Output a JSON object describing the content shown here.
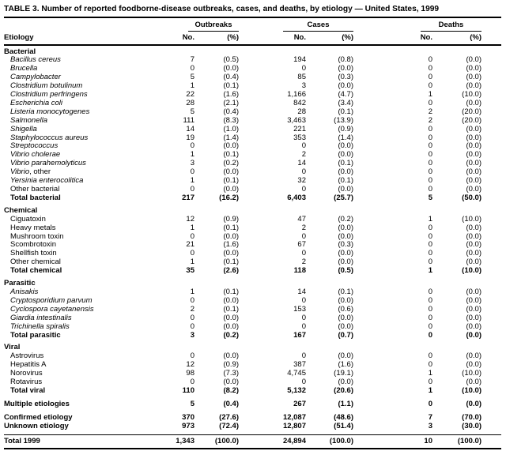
{
  "chart_data": {
    "type": "table",
    "title": "TABLE 3. Number of reported foodborne-disease outbreaks, cases, and deaths, by etiology — United States, 1999",
    "row_header": "Etiology",
    "column_groups": [
      {
        "label": "Outbreaks",
        "columns": [
          "No.",
          "(%)"
        ]
      },
      {
        "label": "Cases",
        "columns": [
          "No.",
          "(%)"
        ]
      },
      {
        "label": "Deaths",
        "columns": [
          "No.",
          "(%)"
        ]
      }
    ],
    "sections": [
      {
        "header": "Bacterial",
        "rows": [
          {
            "name": "Bacillus cereus",
            "style": "italic",
            "values": [
              "7",
              "(0.5)",
              "194",
              "(0.8)",
              "0",
              "(0.0)"
            ]
          },
          {
            "name": "Brucella",
            "style": "italic",
            "values": [
              "0",
              "(0.0)",
              "0",
              "(0.0)",
              "0",
              "(0.0)"
            ]
          },
          {
            "name": "Campylobacter",
            "style": "italic",
            "values": [
              "5",
              "(0.4)",
              "85",
              "(0.3)",
              "0",
              "(0.0)"
            ]
          },
          {
            "name": "Clostridium botulinum",
            "style": "italic",
            "values": [
              "1",
              "(0.1)",
              "3",
              "(0.0)",
              "0",
              "(0.0)"
            ]
          },
          {
            "name": "Clostridium perfringens",
            "style": "italic",
            "values": [
              "22",
              "(1.6)",
              "1,166",
              "(4.7)",
              "1",
              "(10.0)"
            ]
          },
          {
            "name": "Escherichia coli",
            "style": "italic",
            "values": [
              "28",
              "(2.1)",
              "842",
              "(3.4)",
              "0",
              "(0.0)"
            ]
          },
          {
            "name": "Listeria monocytogenes",
            "style": "italic",
            "values": [
              "5",
              "(0.4)",
              "28",
              "(0.1)",
              "2",
              "(20.0)"
            ]
          },
          {
            "name": "Salmonella",
            "style": "italic",
            "values": [
              "111",
              "(8.3)",
              "3,463",
              "(13.9)",
              "2",
              "(20.0)"
            ]
          },
          {
            "name": "Shigella",
            "style": "italic",
            "values": [
              "14",
              "(1.0)",
              "221",
              "(0.9)",
              "0",
              "(0.0)"
            ]
          },
          {
            "name": "Staphylococcus aureus",
            "style": "italic",
            "values": [
              "19",
              "(1.4)",
              "353",
              "(1.4)",
              "0",
              "(0.0)"
            ]
          },
          {
            "name": "Streptococcus",
            "style": "italic",
            "values": [
              "0",
              "(0.0)",
              "0",
              "(0.0)",
              "0",
              "(0.0)"
            ]
          },
          {
            "name": "Vibrio cholerae",
            "style": "italic",
            "values": [
              "1",
              "(0.1)",
              "2",
              "(0.0)",
              "0",
              "(0.0)"
            ]
          },
          {
            "name": "Vibrio parahemolyticus",
            "style": "italic",
            "values": [
              "3",
              "(0.2)",
              "14",
              "(0.1)",
              "0",
              "(0.0)"
            ]
          },
          {
            "name": "Vibrio, other",
            "style": "mixed",
            "italic_part": "Vibrio",
            "values": [
              "0",
              "(0.0)",
              "0",
              "(0.0)",
              "0",
              "(0.0)"
            ]
          },
          {
            "name": "Yersinia enterocolitica",
            "style": "italic",
            "values": [
              "1",
              "(0.1)",
              "32",
              "(0.1)",
              "0",
              "(0.0)"
            ]
          },
          {
            "name": "Other bacterial",
            "style": "roman",
            "values": [
              "0",
              "(0.0)",
              "0",
              "(0.0)",
              "0",
              "(0.0)"
            ]
          },
          {
            "name": "Total bacterial",
            "style": "roman",
            "total": true,
            "values": [
              "217",
              "(16.2)",
              "6,403",
              "(25.7)",
              "5",
              "(50.0)"
            ]
          }
        ]
      },
      {
        "header": "Chemical",
        "rows": [
          {
            "name": "Ciguatoxin",
            "style": "roman",
            "values": [
              "12",
              "(0.9)",
              "47",
              "(0.2)",
              "1",
              "(10.0)"
            ]
          },
          {
            "name": "Heavy metals",
            "style": "roman",
            "values": [
              "1",
              "(0.1)",
              "2",
              "(0.0)",
              "0",
              "(0.0)"
            ]
          },
          {
            "name": "Mushroom toxin",
            "style": "roman",
            "values": [
              "0",
              "(0.0)",
              "0",
              "(0.0)",
              "0",
              "(0.0)"
            ]
          },
          {
            "name": "Scombrotoxin",
            "style": "roman",
            "values": [
              "21",
              "(1.6)",
              "67",
              "(0.3)",
              "0",
              "(0.0)"
            ]
          },
          {
            "name": "Shellfish toxin",
            "style": "roman",
            "values": [
              "0",
              "(0.0)",
              "0",
              "(0.0)",
              "0",
              "(0.0)"
            ]
          },
          {
            "name": "Other chemical",
            "style": "roman",
            "values": [
              "1",
              "(0.1)",
              "2",
              "(0.0)",
              "0",
              "(0.0)"
            ]
          },
          {
            "name": "Total chemical",
            "style": "roman",
            "total": true,
            "values": [
              "35",
              "(2.6)",
              "118",
              "(0.5)",
              "1",
              "(10.0)"
            ]
          }
        ]
      },
      {
        "header": "Parasitic",
        "rows": [
          {
            "name": "Anisakis",
            "style": "italic",
            "values": [
              "1",
              "(0.1)",
              "14",
              "(0.1)",
              "0",
              "(0.0)"
            ]
          },
          {
            "name": "Cryptosporidium parvum",
            "style": "italic",
            "values": [
              "0",
              "(0.0)",
              "0",
              "(0.0)",
              "0",
              "(0.0)"
            ]
          },
          {
            "name": "Cyclospora cayetanensis",
            "style": "italic",
            "values": [
              "2",
              "(0.1)",
              "153",
              "(0.6)",
              "0",
              "(0.0)"
            ]
          },
          {
            "name": "Giardia intestinalis",
            "style": "italic",
            "values": [
              "0",
              "(0.0)",
              "0",
              "(0.0)",
              "0",
              "(0.0)"
            ]
          },
          {
            "name": "Trichinella spiralis",
            "style": "italic",
            "values": [
              "0",
              "(0.0)",
              "0",
              "(0.0)",
              "0",
              "(0.0)"
            ]
          },
          {
            "name": "Total parasitic",
            "style": "roman",
            "total": true,
            "values": [
              "3",
              "(0.2)",
              "167",
              "(0.7)",
              "0",
              "(0.0)"
            ]
          }
        ]
      },
      {
        "header": "Viral",
        "rows": [
          {
            "name": "Astrovirus",
            "style": "roman",
            "values": [
              "0",
              "(0.0)",
              "0",
              "(0.0)",
              "0",
              "(0.0)"
            ]
          },
          {
            "name": "Hepatitis A",
            "style": "roman",
            "values": [
              "12",
              "(0.9)",
              "387",
              "(1.6)",
              "0",
              "(0.0)"
            ]
          },
          {
            "name": "Norovirus",
            "style": "roman",
            "values": [
              "98",
              "(7.3)",
              "4,745",
              "(19.1)",
              "1",
              "(10.0)"
            ]
          },
          {
            "name": "Rotavirus",
            "style": "roman",
            "values": [
              "0",
              "(0.0)",
              "0",
              "(0.0)",
              "0",
              "(0.0)"
            ]
          },
          {
            "name": "Total viral",
            "style": "roman",
            "total": true,
            "values": [
              "110",
              "(8.2)",
              "5,132",
              "(20.6)",
              "1",
              "(10.0)"
            ]
          }
        ]
      }
    ],
    "summary_rows": [
      {
        "name": "Multiple etiologies",
        "gap_before": true,
        "values": [
          "5",
          "(0.4)",
          "267",
          "(1.1)",
          "0",
          "(0.0)"
        ]
      },
      {
        "name": "Confirmed etiology",
        "gap_before": true,
        "values": [
          "370",
          "(27.6)",
          "12,087",
          "(48.6)",
          "7",
          "(70.0)"
        ]
      },
      {
        "name": "Unknown etiology",
        "gap_before": false,
        "values": [
          "973",
          "(72.4)",
          "12,807",
          "(51.4)",
          "3",
          "(30.0)"
        ]
      }
    ],
    "grand_total": {
      "name": "Total 1999",
      "values": [
        "1,343",
        "(100.0)",
        "24,894",
        "(100.0)",
        "10",
        "(100.0)"
      ]
    }
  }
}
